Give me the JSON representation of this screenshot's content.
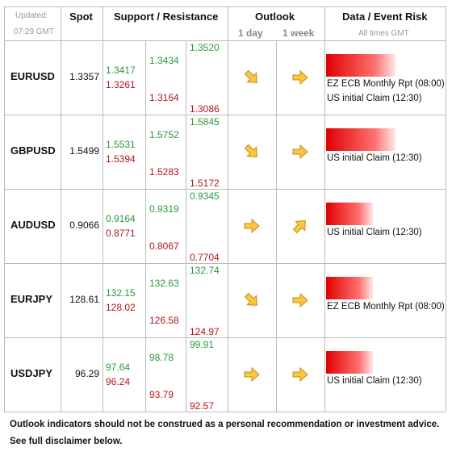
{
  "header": {
    "updated_label": "Updated:",
    "updated_time": "07:29 GMT",
    "spot": "Spot",
    "support_resistance": "Support / Resistance",
    "outlook": "Outlook",
    "one_day": "1 day",
    "one_week": "1 week",
    "event_risk": "Data / Event Risk",
    "times_note": "All times GMT"
  },
  "rows": [
    {
      "pair": "EURUSD",
      "spot": "1.3357",
      "resistance": [
        "1.3417",
        "1.3434",
        "1.3520"
      ],
      "support": [
        "1.3261",
        "1.3164",
        "1.3086"
      ],
      "events": [
        "EZ ECB Monthly Rpt (08:00)",
        "US initial Claim (12:30)"
      ]
    },
    {
      "pair": "GBPUSD",
      "spot": "1.5499",
      "resistance": [
        "1.5531",
        "1.5752",
        "1.5845"
      ],
      "support": [
        "1.5394",
        "1.5283",
        "1.5172"
      ],
      "events": [
        "US initial Claim (12:30)"
      ]
    },
    {
      "pair": "AUDUSD",
      "spot": "0.9066",
      "resistance": [
        "0.9164",
        "0.9319",
        "0.9345"
      ],
      "support": [
        "0.8771",
        "0.8067",
        "0.7704"
      ],
      "events": [
        "US initial Claim (12:30)"
      ]
    },
    {
      "pair": "EURJPY",
      "spot": "128.61",
      "resistance": [
        "132.15",
        "132.63",
        "132.74"
      ],
      "support": [
        "128.02",
        "126.58",
        "124.97"
      ],
      "events": [
        "EZ ECB Monthly Rpt (08:00)"
      ]
    },
    {
      "pair": "USDJPY",
      "spot": "96.29",
      "resistance": [
        "97.64",
        "98.78",
        "99.91"
      ],
      "support": [
        "96.24",
        "93.79",
        "92.57"
      ],
      "events": [
        "US initial Claim (12:30)"
      ]
    }
  ],
  "footer": [
    "Outlook indicators should not be construed as a personal recommendation or investment advice.",
    "See full disclaimer below."
  ]
}
